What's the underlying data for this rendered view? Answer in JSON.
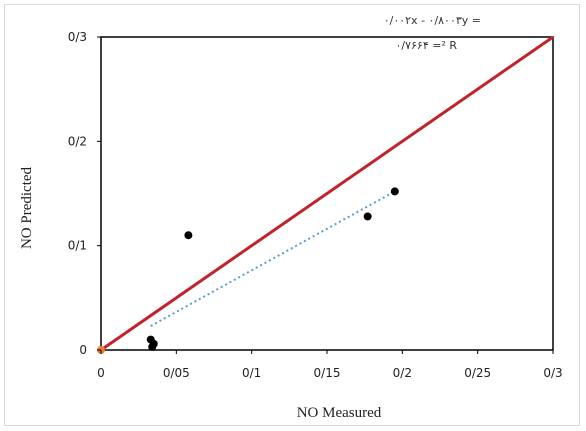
{
  "chart_data": {
    "type": "scatter",
    "xlabel": "NO Measured",
    "ylabel": "NO Predicted",
    "xlim": [
      0,
      0.3
    ],
    "ylim": [
      0,
      0.3
    ],
    "x_ticks": [
      0,
      0.05,
      0.1,
      0.15,
      0.2,
      0.25,
      0.3
    ],
    "x_tick_labels": [
      "0",
      "0/05",
      "0/1",
      "0/15",
      "0/2",
      "0/25",
      "0/3"
    ],
    "y_ticks": [
      0,
      0.1,
      0.2,
      0.3
    ],
    "y_tick_labels": [
      "0",
      "0/1",
      "0/2",
      "0/3"
    ],
    "grid": false,
    "series": [
      {
        "points": [
          {
            "x": 0.033,
            "y": 0.01
          },
          {
            "x": 0.035,
            "y": 0.006
          },
          {
            "x": 0.034,
            "y": 0.003
          },
          {
            "x": 0.058,
            "y": 0.11
          },
          {
            "x": 0.177,
            "y": 0.128
          },
          {
            "x": 0.195,
            "y": 0.152
          }
        ],
        "color": "#000000"
      }
    ],
    "reference_line": {
      "x": [
        0,
        0.3
      ],
      "y": [
        0,
        0.3
      ],
      "color": "#c0232b"
    },
    "trendline": {
      "x": [
        0.033,
        0.195
      ],
      "y": [
        0.023,
        0.152
      ],
      "color": "#5b9bd5",
      "style": "dotted"
    },
    "origin_marker_color": "#ed7d31",
    "annotations": {
      "equation": "۰/۰۰۲x - ۰/۸۰۰۳y =",
      "r_squared": "۰/۷۶۶۴ =² R"
    }
  }
}
